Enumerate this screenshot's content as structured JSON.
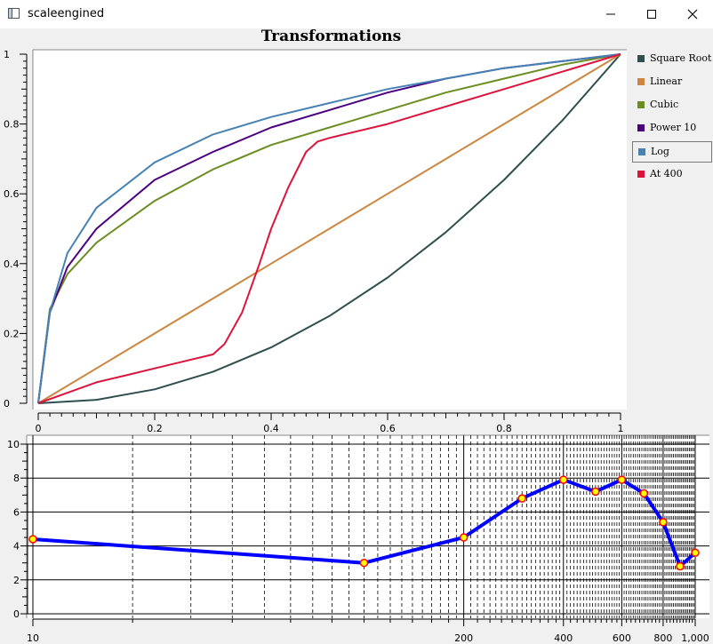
{
  "window": {
    "title": "scaleengined"
  },
  "chart_data": [
    {
      "type": "line",
      "title": "Transformations",
      "xlim": [
        0,
        1
      ],
      "ylim": [
        0,
        1
      ],
      "x_ticks": [
        "0",
        "0.2",
        "0.4",
        "0.6",
        "0.8",
        "1"
      ],
      "y_ticks": [
        "0",
        "0.2",
        "0.4",
        "0.6",
        "0.8",
        "1"
      ],
      "grid": false,
      "legend_position": "right",
      "series": [
        {
          "name": "Square Root",
          "color": "#2f4f4f",
          "x": [
            0,
            0.1,
            0.2,
            0.3,
            0.4,
            0.5,
            0.6,
            0.7,
            0.8,
            0.9,
            1
          ],
          "y": [
            0,
            0.01,
            0.04,
            0.09,
            0.16,
            0.25,
            0.36,
            0.49,
            0.64,
            0.81,
            1
          ]
        },
        {
          "name": "Linear",
          "color": "#cd853f",
          "x": [
            0,
            0.2,
            0.4,
            0.6,
            0.8,
            1
          ],
          "y": [
            0,
            0.2,
            0.4,
            0.6,
            0.8,
            1
          ]
        },
        {
          "name": "Cubic",
          "color": "#6b8e23",
          "x": [
            0,
            0.02,
            0.05,
            0.1,
            0.2,
            0.3,
            0.4,
            0.5,
            0.6,
            0.7,
            0.8,
            0.9,
            1
          ],
          "y": [
            0,
            0.27,
            0.37,
            0.46,
            0.58,
            0.67,
            0.74,
            0.79,
            0.84,
            0.89,
            0.93,
            0.97,
            1
          ]
        },
        {
          "name": "Power 10",
          "color": "#4b0082",
          "x": [
            0,
            0.02,
            0.05,
            0.1,
            0.2,
            0.3,
            0.4,
            0.5,
            0.6,
            0.7,
            0.8,
            0.9,
            1
          ],
          "y": [
            0,
            0.26,
            0.39,
            0.5,
            0.64,
            0.72,
            0.79,
            0.84,
            0.89,
            0.93,
            0.96,
            0.98,
            1
          ]
        },
        {
          "name": "Log",
          "color": "#4682b4",
          "x": [
            0,
            0.02,
            0.05,
            0.1,
            0.2,
            0.3,
            0.4,
            0.5,
            0.6,
            0.7,
            0.8,
            0.9,
            1
          ],
          "y": [
            0,
            0.26,
            0.43,
            0.56,
            0.69,
            0.77,
            0.82,
            0.86,
            0.9,
            0.93,
            0.96,
            0.98,
            1
          ]
        },
        {
          "name": "At 400",
          "color": "#dc143c",
          "x": [
            0,
            0.05,
            0.1,
            0.15,
            0.2,
            0.25,
            0.3,
            0.32,
            0.35,
            0.38,
            0.4,
            0.43,
            0.46,
            0.48,
            0.5,
            0.6,
            0.7,
            0.8,
            0.9,
            1
          ],
          "y": [
            0,
            0.03,
            0.06,
            0.08,
            0.1,
            0.12,
            0.14,
            0.17,
            0.26,
            0.4,
            0.5,
            0.62,
            0.72,
            0.75,
            0.76,
            0.8,
            0.85,
            0.9,
            0.95,
            1
          ]
        }
      ]
    },
    {
      "type": "line",
      "xscale": "log",
      "xlim": [
        10,
        1000
      ],
      "ylim": [
        0,
        10
      ],
      "x_tick_labels": [
        "10",
        "200",
        "400",
        "600",
        "800",
        "1,000"
      ],
      "x_tick_values": [
        10,
        200,
        400,
        600,
        800,
        1000
      ],
      "y_ticks": [
        "0",
        "2",
        "4",
        "6",
        "8",
        "10"
      ],
      "grid": true,
      "series": [
        {
          "color": "#0000ff",
          "marker_color": "#ffff00",
          "marker_edge": "#ff0000",
          "x": [
            10,
            100,
            200,
            300,
            400,
            500,
            600,
            700,
            800,
            900,
            1000
          ],
          "y": [
            4.4,
            3.0,
            4.5,
            6.8,
            7.9,
            7.2,
            7.9,
            7.1,
            5.4,
            2.8,
            3.6
          ]
        }
      ]
    }
  ]
}
